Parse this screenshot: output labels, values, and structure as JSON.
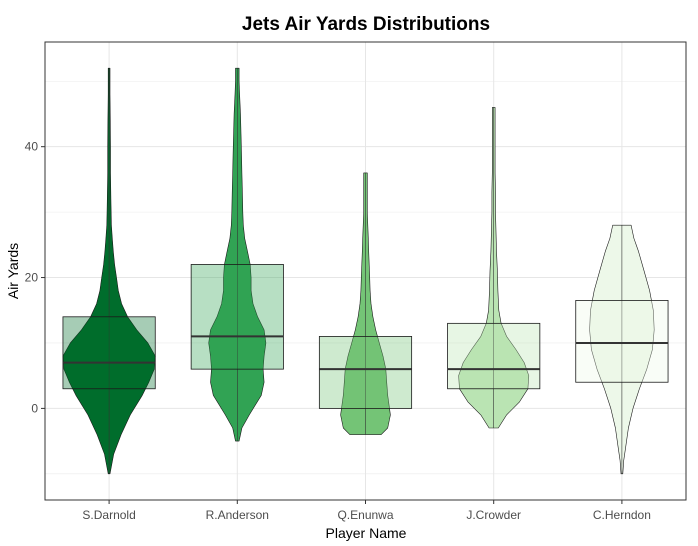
{
  "chart_data": {
    "type": "violin",
    "title": "Jets Air Yards Distributions",
    "xlabel": "Player Name",
    "ylabel": "Air Yards",
    "ylim": [
      -14,
      56
    ],
    "yticks": [
      0,
      20,
      40
    ],
    "grid": true,
    "categories": [
      "S.Darnold",
      "R.Anderson",
      "Q.Enunwa",
      "J.Crowder",
      "C.Herndon"
    ],
    "series": [
      {
        "name": "S.Darnold",
        "color": "#006d2c",
        "min": -10,
        "max": 52,
        "q1": 3,
        "median": 7,
        "q3": 14,
        "density": [
          [
            -10,
            0.02
          ],
          [
            -7,
            0.1
          ],
          [
            -4,
            0.26
          ],
          [
            -1,
            0.46
          ],
          [
            2,
            0.72
          ],
          [
            4,
            0.86
          ],
          [
            6,
            0.98
          ],
          [
            8,
            1.0
          ],
          [
            10,
            0.84
          ],
          [
            12,
            0.6
          ],
          [
            14,
            0.4
          ],
          [
            16,
            0.27
          ],
          [
            18,
            0.2
          ],
          [
            20,
            0.16
          ],
          [
            22,
            0.12
          ],
          [
            24,
            0.09
          ],
          [
            26,
            0.07
          ],
          [
            28,
            0.05
          ],
          [
            32,
            0.04
          ],
          [
            36,
            0.03
          ],
          [
            40,
            0.03
          ],
          [
            44,
            0.025
          ],
          [
            48,
            0.02
          ],
          [
            52,
            0.02
          ]
        ]
      },
      {
        "name": "R.Anderson",
        "color": "#31a354",
        "min": -5,
        "max": 52,
        "q1": 6,
        "median": 11,
        "q3": 22,
        "density": [
          [
            -5,
            0.04
          ],
          [
            -3,
            0.1
          ],
          [
            -1,
            0.26
          ],
          [
            2,
            0.52
          ],
          [
            4,
            0.58
          ],
          [
            6,
            0.56
          ],
          [
            8,
            0.58
          ],
          [
            10,
            0.62
          ],
          [
            12,
            0.58
          ],
          [
            14,
            0.44
          ],
          [
            16,
            0.34
          ],
          [
            18,
            0.3
          ],
          [
            20,
            0.3
          ],
          [
            22,
            0.28
          ],
          [
            24,
            0.22
          ],
          [
            26,
            0.16
          ],
          [
            28,
            0.13
          ],
          [
            30,
            0.12
          ],
          [
            33,
            0.11
          ],
          [
            36,
            0.1
          ],
          [
            39,
            0.09
          ],
          [
            42,
            0.08
          ],
          [
            45,
            0.07
          ],
          [
            48,
            0.05
          ],
          [
            50,
            0.04
          ],
          [
            52,
            0.04
          ]
        ]
      },
      {
        "name": "Q.Enunwa",
        "color": "#74c476",
        "min": -4,
        "max": 36,
        "q1": 0,
        "median": 6,
        "q3": 11,
        "density": [
          [
            -4,
            0.34
          ],
          [
            -3,
            0.48
          ],
          [
            -1,
            0.54
          ],
          [
            0,
            0.52
          ],
          [
            2,
            0.48
          ],
          [
            4,
            0.46
          ],
          [
            6,
            0.44
          ],
          [
            8,
            0.38
          ],
          [
            10,
            0.3
          ],
          [
            12,
            0.22
          ],
          [
            14,
            0.16
          ],
          [
            16,
            0.12
          ],
          [
            18,
            0.1
          ],
          [
            20,
            0.09
          ],
          [
            22,
            0.08
          ],
          [
            24,
            0.07
          ],
          [
            26,
            0.06
          ],
          [
            28,
            0.05
          ],
          [
            30,
            0.04
          ],
          [
            32,
            0.04
          ],
          [
            34,
            0.04
          ],
          [
            36,
            0.04
          ]
        ]
      },
      {
        "name": "J.Crowder",
        "color": "#bae4b3",
        "min": -3,
        "max": 46,
        "q1": 3,
        "median": 6,
        "q3": 13,
        "density": [
          [
            -3,
            0.1
          ],
          [
            -1,
            0.28
          ],
          [
            1,
            0.56
          ],
          [
            3,
            0.74
          ],
          [
            5,
            0.76
          ],
          [
            7,
            0.66
          ],
          [
            9,
            0.48
          ],
          [
            11,
            0.28
          ],
          [
            13,
            0.16
          ],
          [
            15,
            0.11
          ],
          [
            18,
            0.09
          ],
          [
            21,
            0.08
          ],
          [
            24,
            0.06
          ],
          [
            27,
            0.05
          ],
          [
            30,
            0.04
          ],
          [
            33,
            0.04
          ],
          [
            36,
            0.03
          ],
          [
            39,
            0.03
          ],
          [
            42,
            0.03
          ],
          [
            44,
            0.03
          ],
          [
            46,
            0.03
          ]
        ]
      },
      {
        "name": "C.Herndon",
        "color": "#edf8e9",
        "min": -10,
        "max": 28,
        "q1": 4,
        "median": 10,
        "q3": 16.5,
        "density": [
          [
            -10,
            0.02
          ],
          [
            -8,
            0.04
          ],
          [
            -6,
            0.08
          ],
          [
            -3,
            0.14
          ],
          [
            0,
            0.24
          ],
          [
            3,
            0.38
          ],
          [
            6,
            0.54
          ],
          [
            9,
            0.66
          ],
          [
            12,
            0.7
          ],
          [
            15,
            0.68
          ],
          [
            18,
            0.6
          ],
          [
            21,
            0.48
          ],
          [
            24,
            0.36
          ],
          [
            26,
            0.26
          ],
          [
            28,
            0.2
          ]
        ]
      }
    ]
  }
}
